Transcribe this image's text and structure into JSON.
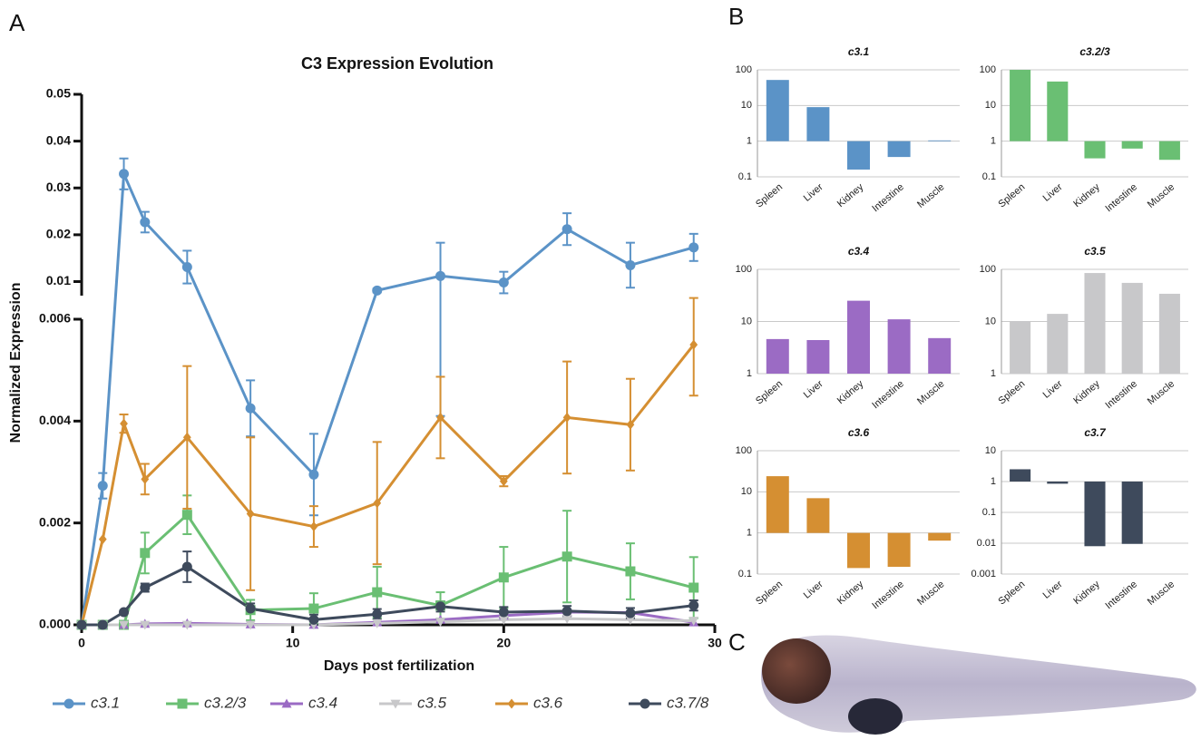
{
  "panel_labels": [
    "A",
    "B",
    "C"
  ],
  "chart_data": [
    {
      "type": "line",
      "title": "C3 Expression Evolution",
      "x_label": "Days post fertilization",
      "y_label": "Normalized Expression",
      "x": [
        0,
        1,
        2,
        3,
        5,
        8,
        11,
        14,
        17,
        20,
        23,
        26,
        29
      ],
      "xlim": [
        0,
        30
      ],
      "xticks": [
        0,
        10,
        20,
        30
      ],
      "y_segments": [
        {
          "ylim": [
            0,
            0.006
          ],
          "yticks": [
            {
              "value": 0,
              "label": "0.000"
            },
            {
              "value": 0.002,
              "label": "0.002"
            },
            {
              "value": 0.004,
              "label": "0.004"
            },
            {
              "value": 0.006,
              "label": "0.006"
            }
          ]
        },
        {
          "ylim": [
            0.007,
            0.05
          ],
          "yticks": [
            0.01,
            0.02,
            0.03,
            0.04,
            0.05
          ]
        }
      ],
      "series": [
        {
          "name": "c3.1",
          "color": "#5b93c7",
          "marker": "circle",
          "values": [
            0,
            0.00273,
            0.033,
            0.0227,
            0.0131,
            0.00425,
            0.00295,
            0.0081,
            0.0112,
            0.0098,
            0.0212,
            0.0135,
            0.0173
          ],
          "errors": [
            0,
            0.00025,
            0.0033,
            0.0022,
            0.0035,
            0.00055,
            0.0008,
            0.0004,
            0.0071,
            0.0023,
            0.0034,
            0.0048,
            0.0029
          ]
        },
        {
          "name": "c3.2/3",
          "color": "#6abf73",
          "marker": "square",
          "values": [
            0,
            0,
            0,
            0.00141,
            0.00216,
            0.00029,
            0.00032,
            0.00064,
            0.00038,
            0.00093,
            0.00134,
            0.00105,
            0.00073
          ],
          "errors": [
            0,
            0,
            0,
            0.0004,
            0.00038,
            0.0002,
            0.0003,
            0.0005,
            0.00026,
            0.0006,
            0.0009,
            0.00055,
            0.0006
          ]
        },
        {
          "name": "c3.4",
          "color": "#9b6bc4",
          "marker": "triangle-up",
          "values": [
            0,
            0,
            0,
            2e-05,
            3e-05,
            1e-05,
            0,
            5e-05,
            0.0001,
            0.00018,
            0.00025,
            0.00024,
            5e-05
          ]
        },
        {
          "name": "c3.5",
          "color": "#c8c8ca",
          "marker": "triangle-down",
          "values": [
            0,
            0,
            0,
            0,
            0,
            0,
            0,
            3e-05,
            6e-05,
            0.0001,
            0.00012,
            0.0001,
            8e-05
          ]
        },
        {
          "name": "c3.6",
          "color": "#d58f32",
          "marker": "diamond",
          "values": [
            0,
            0.00168,
            0.00395,
            0.00286,
            0.00368,
            0.00218,
            0.00193,
            0.00239,
            0.00407,
            0.00282,
            0.00407,
            0.00393,
            0.0055
          ],
          "errors": [
            0,
            0,
            0.00018,
            0.0003,
            0.0014,
            0.0015,
            0.0004,
            0.0012,
            0.0008,
            0.0001,
            0.0011,
            0.0009,
            0.001
          ]
        },
        {
          "name": "c3.7/8",
          "color": "#3e4a5c",
          "marker": "circle",
          "values": [
            0,
            0,
            0.00025,
            0.00073,
            0.00114,
            0.00032,
            0.0001,
            0.00021,
            0.00036,
            0.00025,
            0.00027,
            0.00023,
            0.00038
          ],
          "errors": [
            0,
            0,
            3e-05,
            8e-05,
            0.0003,
            0.0001,
            0.0001,
            0.0001,
            0.0001,
            0.0001,
            0.0001,
            0.0001,
            0.0001
          ]
        }
      ]
    },
    {
      "type": "bar",
      "title": "c3.1",
      "categories": [
        "Spleen",
        "Liver",
        "Kidney",
        "Intestine",
        "Muscle"
      ],
      "values": [
        52,
        9,
        0.16,
        0.36,
        1.05
      ],
      "color": "#5b93c7",
      "log_scale": true,
      "ylim": [
        0.1,
        100
      ],
      "yticks": [
        0.1,
        1,
        10,
        100
      ],
      "grid": true
    },
    {
      "type": "bar",
      "title": "c3.2/3",
      "categories": [
        "Spleen",
        "Liver",
        "Kidney",
        "Intestine",
        "Muscle"
      ],
      "values": [
        100,
        47,
        0.33,
        0.62,
        0.3
      ],
      "color": "#6abf73",
      "log_scale": true,
      "ylim": [
        0.1,
        100
      ],
      "yticks": [
        0.1,
        1,
        10,
        100
      ],
      "grid": true
    },
    {
      "type": "bar",
      "title": "c3.4",
      "categories": [
        "Spleen",
        "Liver",
        "Kidney",
        "Intestine",
        "Muscle"
      ],
      "values": [
        4.6,
        4.4,
        25,
        11,
        4.8
      ],
      "color": "#9b6bc4",
      "log_scale": true,
      "ylim": [
        1,
        100
      ],
      "yticks": [
        1,
        10,
        100
      ],
      "grid": true
    },
    {
      "type": "bar",
      "title": "c3.5",
      "categories": [
        "Spleen",
        "Liver",
        "Kidney",
        "Intestine",
        "Muscle"
      ],
      "values": [
        10,
        14,
        85,
        55,
        34
      ],
      "color": "#c8c8ca",
      "log_scale": true,
      "ylim": [
        1,
        100
      ],
      "yticks": [
        1,
        10,
        100
      ],
      "grid": true
    },
    {
      "type": "bar",
      "title": "c3.6",
      "categories": [
        "Spleen",
        "Liver",
        "Kidney",
        "Intestine",
        "Muscle"
      ],
      "values": [
        24,
        7,
        0.14,
        0.15,
        0.65
      ],
      "color": "#d58f32",
      "log_scale": true,
      "ylim": [
        0.1,
        100
      ],
      "yticks": [
        0.1,
        1,
        10,
        100
      ],
      "grid": true
    },
    {
      "type": "bar",
      "title": "c3.7",
      "categories": [
        "Spleen",
        "Liver",
        "Kidney",
        "Intestine",
        "Muscle"
      ],
      "values": [
        2.5,
        0.85,
        0.008,
        0.0095,
        1
      ],
      "color": "#3e4a5c",
      "log_scale": true,
      "ylim": [
        0.001,
        10
      ],
      "yticks": [
        0.001,
        0.01,
        0.1,
        1,
        10
      ],
      "grid": true
    }
  ]
}
